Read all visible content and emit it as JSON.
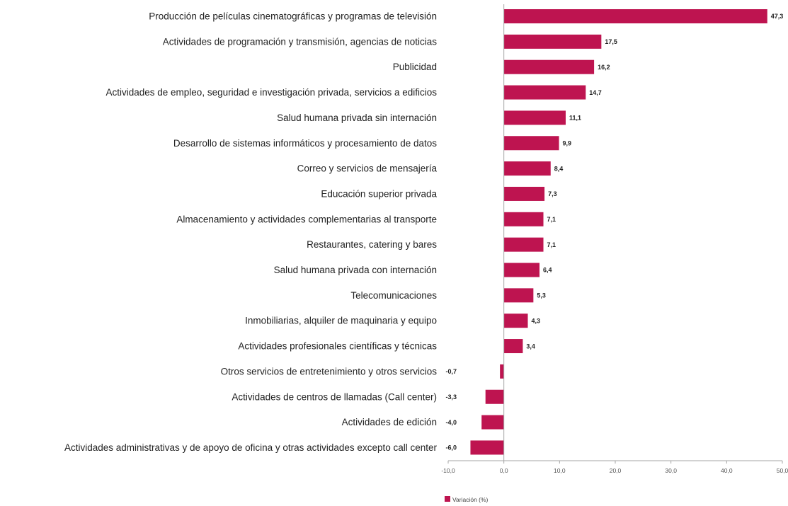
{
  "chart_data": {
    "type": "bar",
    "orientation": "horizontal",
    "categories": [
      "Producción de películas cinematográficas y programas de televisión",
      "Actividades de programación y transmisión,  agencias de noticias",
      "Publicidad",
      "Actividades de empleo, seguridad e investigación privada, servicios a edificios",
      "Salud humana privada sin internación",
      "Desarrollo de sistemas informáticos y procesamiento de datos",
      "Correo y servicios de mensajería",
      "Educación superior privada",
      "Almacenamiento y actividades complementarias al transporte",
      "Restaurantes, catering y bares",
      "Salud humana privada con internación",
      "Telecomunicaciones",
      "Inmobiliarias, alquiler de maquinaria y equipo",
      "Actividades profesionales científicas y técnicas",
      "Otros servicios de entretenimiento y otros servicios",
      "Actividades de centros de llamadas (Call center)",
      "Actividades de edición",
      "Actividades administrativas y de apoyo de oficina y otras actividades excepto call center"
    ],
    "series": [
      {
        "name": "Variación (%)",
        "values": [
          47.3,
          17.5,
          16.2,
          14.7,
          11.1,
          9.9,
          8.4,
          7.3,
          7.1,
          7.1,
          6.4,
          5.3,
          4.3,
          3.4,
          -0.7,
          -3.3,
          -4.0,
          -6.0
        ],
        "value_labels": [
          "47,3",
          "17,5",
          "16,2",
          "14,7",
          "11,1",
          "9,9",
          "8,4",
          "7,3",
          "7,1",
          "7,1",
          "6,4",
          "5,3",
          "4,3",
          "3,4",
          "-0,7",
          "-3,3",
          "-4,0",
          "-6,0"
        ]
      }
    ],
    "xlim": [
      -10,
      50
    ],
    "ticks": [
      -10,
      0,
      10,
      20,
      30,
      40,
      50
    ],
    "tick_labels": [
      "-10,0",
      "0,0",
      "10,0",
      "20,0",
      "30,0",
      "40,0",
      "50,0"
    ],
    "grid": false,
    "legend": {
      "position": "bottom-left",
      "label": "Variación (%)"
    },
    "colors": {
      "bar": "#BE1450",
      "axis": "#A6A6A6",
      "text": "#222222"
    }
  }
}
